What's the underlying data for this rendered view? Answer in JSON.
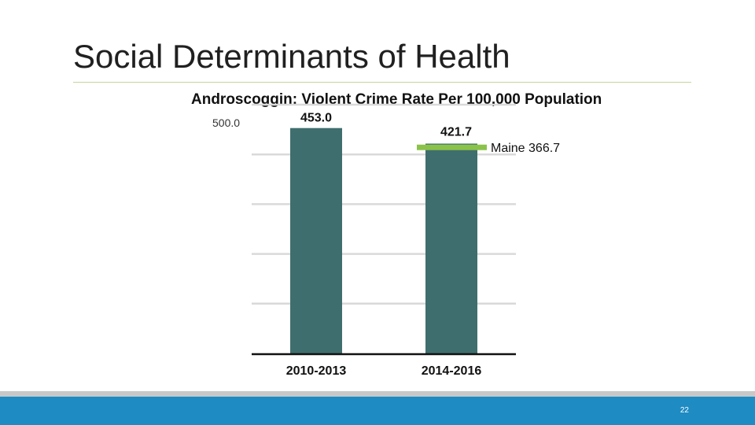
{
  "slide": {
    "title": "Social Determinants of Health",
    "page_number": "22"
  },
  "colors": {
    "bar": "#3f6e6e",
    "reference_line": "#8bc34a",
    "grid": "#d9d9d9",
    "axis": "#111111",
    "title_rule": "#c5d69b",
    "footer": "#1e8bc3",
    "footer_top": "#c8c8c8"
  },
  "chart_data": {
    "type": "bar",
    "title": "Androscoggin: Violent Crime Rate Per 100,000 Population",
    "categories": [
      "2010-2013",
      "2014-2016"
    ],
    "values": [
      453.0,
      421.7
    ],
    "value_labels": [
      "453.0",
      "421.7"
    ],
    "ylim": [
      0,
      500
    ],
    "y_tick_label": "500.0",
    "grid": true,
    "reference_line": {
      "label": "Maine 366.7",
      "value": 366.7
    }
  }
}
